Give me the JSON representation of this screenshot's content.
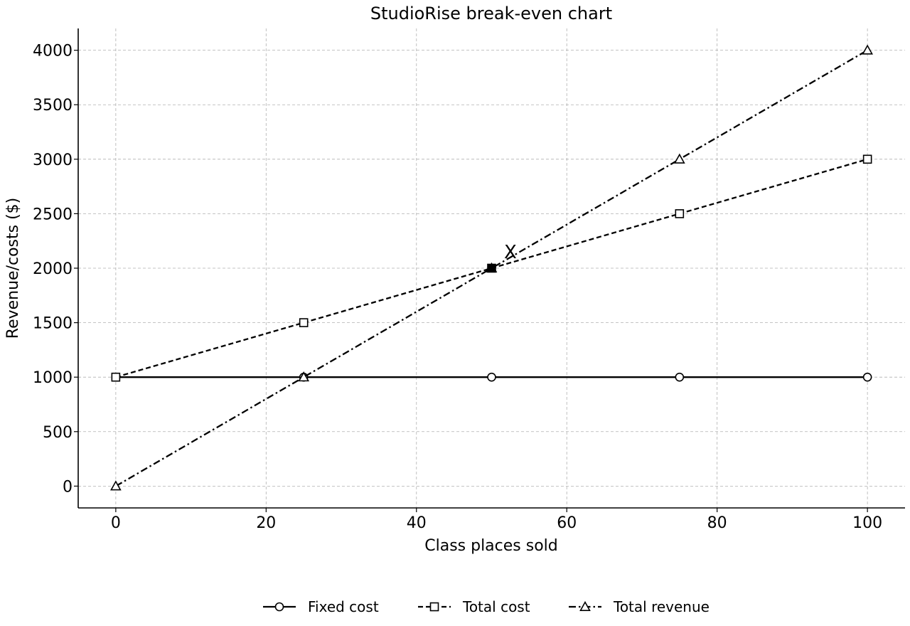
{
  "chart_data": {
    "type": "line",
    "title": "StudioRise break-even chart",
    "xlabel": "Class places sold",
    "ylabel": "Revenue/costs ($)",
    "xlim": [
      -5,
      105
    ],
    "ylim": [
      -200,
      4200
    ],
    "xticks": [
      0,
      20,
      40,
      60,
      80,
      100
    ],
    "yticks": [
      0,
      500,
      1000,
      1500,
      2000,
      2500,
      3000,
      3500,
      4000
    ],
    "grid": true,
    "legend_position": "bottom-center",
    "series": [
      {
        "name": "Fixed cost",
        "x": [
          0,
          25,
          50,
          75,
          100
        ],
        "y": [
          1000,
          1000,
          1000,
          1000,
          1000
        ],
        "marker": "circle",
        "dash": "solid"
      },
      {
        "name": "Total cost",
        "x": [
          0,
          25,
          50,
          75,
          100
        ],
        "y": [
          1000,
          1500,
          2000,
          2500,
          3000
        ],
        "marker": "square",
        "dash": "dashed"
      },
      {
        "name": "Total revenue",
        "x": [
          0,
          25,
          50,
          75,
          100
        ],
        "y": [
          0,
          1000,
          2000,
          3000,
          4000
        ],
        "marker": "triangle",
        "dash": "dashdot"
      }
    ],
    "annotations": [
      {
        "text": "X",
        "x": 52.5,
        "y": 2150
      }
    ],
    "colors": {
      "line": "#000000",
      "grid": "#b0b0b0",
      "background": "#ffffff"
    }
  }
}
